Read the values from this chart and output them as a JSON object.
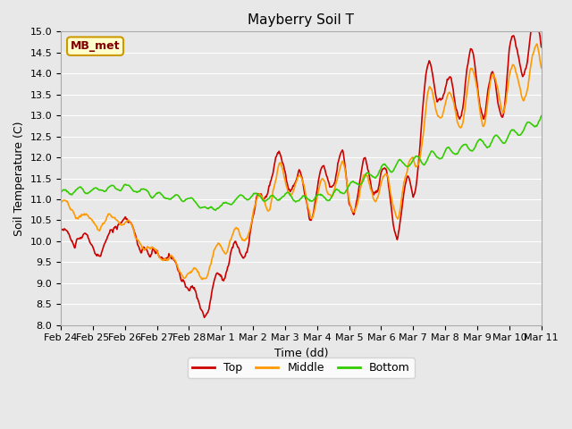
{
  "title": "Mayberry Soil T",
  "xlabel": "Time (dd)",
  "ylabel": "Soil Temperature (C)",
  "ylim": [
    8.0,
    15.0
  ],
  "yticks": [
    8.0,
    8.5,
    9.0,
    9.5,
    10.0,
    10.5,
    11.0,
    11.5,
    12.0,
    12.5,
    13.0,
    13.5,
    14.0,
    14.5,
    15.0
  ],
  "xtick_labels": [
    "Feb 24",
    "Feb 25",
    "Feb 26",
    "Feb 27",
    "Feb 28",
    "Mar 1",
    "Mar 2",
    "Mar 3",
    "Mar 4",
    "Mar 5",
    "Mar 6",
    "Mar 7",
    "Mar 8",
    "Mar 9",
    "Mar 10",
    "Mar 11"
  ],
  "color_top": "#cc0000",
  "color_middle": "#ff9900",
  "color_green": "#33cc00",
  "legend_label_top": "Top",
  "legend_label_middle": "Middle",
  "legend_label_bottom": "Bottom",
  "annotation_text": "MB_met",
  "annotation_bg": "#ffffcc",
  "annotation_border": "#cc9900",
  "bg_color": "#e8e8e8",
  "plot_bg": "#e8e8e8",
  "grid_color": "#ffffff",
  "title_fontsize": 11,
  "axis_fontsize": 9,
  "tick_fontsize": 8,
  "legend_fontsize": 9,
  "line_width": 1.2
}
